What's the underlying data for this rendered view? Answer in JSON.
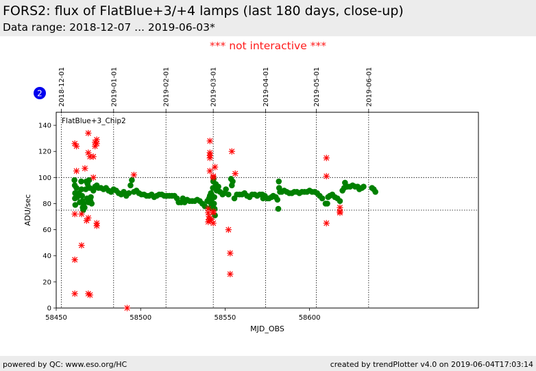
{
  "header": {
    "title": "FORS2: flux of FlatBlue+3/+4 lamps (last 180 days, close-up)",
    "subtitle": "Data range: 2018-12-07 ... 2019-06-03*"
  },
  "notice": "*** not interactive ***",
  "badge": {
    "number": "2",
    "color": "#0000ee"
  },
  "footer": {
    "left": "powered by QC: www.eso.org/HC",
    "right": "created by trendPlotter v4.0 on 2019-06-04T17:03:14"
  },
  "chart_data": {
    "type": "scatter",
    "panel_label": "FlatBlue+3_Chip2",
    "xlabel": "MJD_OBS",
    "ylabel": "ADU/sec",
    "xlim": [
      58450,
      58700
    ],
    "ylim": [
      0,
      150
    ],
    "x_ticks": [
      58450,
      58500,
      58550,
      58600
    ],
    "y_ticks": [
      0,
      20,
      40,
      60,
      80,
      100,
      120,
      140
    ],
    "top_date_axis": [
      {
        "label": "2018-12-01",
        "mjd": 58453
      },
      {
        "label": "2019-01-01",
        "mjd": 58484
      },
      {
        "label": "2019-02-01",
        "mjd": 58515
      },
      {
        "label": "2019-03-01",
        "mjd": 58543
      },
      {
        "label": "2019-04-01",
        "mjd": 58574
      },
      {
        "label": "2019-05-01",
        "mjd": 58604
      },
      {
        "label": "2019-06-01",
        "mjd": 58635
      }
    ],
    "reference_lines": [
      75,
      100
    ],
    "series": [
      {
        "marker": "circle",
        "color": "#008000",
        "points": [
          [
            58460.8,
            98
          ],
          [
            58461,
            94
          ],
          [
            58461.2,
            88
          ],
          [
            58461.1,
            84
          ],
          [
            58461.3,
            79
          ],
          [
            58462,
            92
          ],
          [
            58462.5,
            85
          ],
          [
            58463.5,
            88
          ],
          [
            58464,
            81
          ],
          [
            58464.8,
            97
          ],
          [
            58465,
            91
          ],
          [
            58465.3,
            86
          ],
          [
            58465.6,
            82
          ],
          [
            58465.7,
            77
          ],
          [
            58466,
            75
          ],
          [
            58466.3,
            80
          ],
          [
            58466.8,
            77
          ],
          [
            58467.5,
            91
          ],
          [
            58467.8,
            97
          ],
          [
            58468.3,
            84
          ],
          [
            58468.6,
            95
          ],
          [
            58469,
            81
          ],
          [
            58469.5,
            98
          ],
          [
            58469.8,
            92
          ],
          [
            58470.5,
            85
          ],
          [
            58470.3,
            82
          ],
          [
            58471,
            80
          ],
          [
            58472,
            90
          ],
          [
            58473,
            93
          ],
          [
            58474,
            94
          ],
          [
            58475,
            92
          ],
          [
            58476.5,
            92
          ],
          [
            58478,
            91
          ],
          [
            58479.5,
            92
          ],
          [
            58481,
            90
          ],
          [
            58482.5,
            89
          ],
          [
            58484,
            91
          ],
          [
            58485.5,
            90
          ],
          [
            58487,
            88
          ],
          [
            58488.5,
            87
          ],
          [
            58490,
            89
          ],
          [
            58491.5,
            86
          ],
          [
            58493,
            88
          ],
          [
            58494,
            94
          ],
          [
            58494.8,
            98
          ],
          [
            58496,
            89
          ],
          [
            58497.5,
            90
          ],
          [
            58499,
            88
          ],
          [
            58500.5,
            87
          ],
          [
            58502,
            87
          ],
          [
            58503.5,
            86
          ],
          [
            58505,
            86
          ],
          [
            58506.5,
            87
          ],
          [
            58508,
            85
          ],
          [
            58509.5,
            86
          ],
          [
            58511,
            87
          ],
          [
            58512.5,
            87
          ],
          [
            58514,
            86
          ],
          [
            58515.5,
            86
          ],
          [
            58517,
            86
          ],
          [
            58518.5,
            86
          ],
          [
            58520,
            86
          ],
          [
            58521.5,
            84
          ],
          [
            58522.5,
            81
          ],
          [
            58524,
            81
          ],
          [
            58525,
            84
          ],
          [
            58526,
            81
          ],
          [
            58527.5,
            83
          ],
          [
            58529,
            82
          ],
          [
            58530.5,
            82
          ],
          [
            58532,
            82
          ],
          [
            58533.5,
            83
          ],
          [
            58535,
            82
          ],
          [
            58536.5,
            80
          ],
          [
            58538,
            78
          ],
          [
            58539.5,
            82
          ],
          [
            58540.5,
            84
          ],
          [
            58541,
            86
          ],
          [
            58541.2,
            81
          ],
          [
            58541.4,
            77
          ],
          [
            58541.6,
            88
          ],
          [
            58542,
            87
          ],
          [
            58542.3,
            84
          ],
          [
            58542.5,
            79
          ],
          [
            58542.8,
            92
          ],
          [
            58543,
            97
          ],
          [
            58543.2,
            99
          ],
          [
            58543.4,
            80
          ],
          [
            58543.6,
            85
          ],
          [
            58543.8,
            76
          ],
          [
            58544,
            71
          ],
          [
            58544.5,
            95
          ],
          [
            58545,
            90
          ],
          [
            58546,
            93
          ],
          [
            58547,
            89
          ],
          [
            58548.5,
            87
          ],
          [
            58549.5,
            88
          ],
          [
            58550.5,
            91
          ],
          [
            58552,
            87
          ],
          [
            58553.5,
            99
          ],
          [
            58554,
            94
          ],
          [
            58554.5,
            97
          ],
          [
            58555.5,
            84
          ],
          [
            58557,
            87
          ],
          [
            58558.5,
            87
          ],
          [
            58560,
            87
          ],
          [
            58561.5,
            88
          ],
          [
            58563,
            86
          ],
          [
            58564.5,
            85
          ],
          [
            58566,
            87
          ],
          [
            58567.5,
            87
          ],
          [
            58569,
            86
          ],
          [
            58570.5,
            87
          ],
          [
            58572,
            87
          ],
          [
            58572.5,
            84
          ],
          [
            58573.5,
            86
          ],
          [
            58575,
            84
          ],
          [
            58576,
            84
          ],
          [
            58577.5,
            85
          ],
          [
            58578.5,
            86
          ],
          [
            58580,
            85
          ],
          [
            58581,
            83
          ],
          [
            58581.5,
            76
          ],
          [
            58581.8,
            97
          ],
          [
            58582,
            92
          ],
          [
            58582.5,
            89
          ],
          [
            58583.5,
            89
          ],
          [
            58585,
            90
          ],
          [
            58586.5,
            89
          ],
          [
            58588,
            88
          ],
          [
            58589.5,
            88
          ],
          [
            58591,
            89
          ],
          [
            58592.5,
            89
          ],
          [
            58594,
            88
          ],
          [
            58595.5,
            89
          ],
          [
            58597,
            89
          ],
          [
            58598.5,
            89
          ],
          [
            58600,
            90
          ],
          [
            58601.5,
            89
          ],
          [
            58603,
            89
          ],
          [
            58604.5,
            88
          ],
          [
            58606,
            86
          ],
          [
            58607.5,
            84
          ],
          [
            58609.5,
            80
          ],
          [
            58610.5,
            80
          ],
          [
            58611,
            85
          ],
          [
            58612,
            86
          ],
          [
            58613.5,
            87
          ],
          [
            58615,
            85
          ],
          [
            58616.5,
            84
          ],
          [
            58618,
            82
          ],
          [
            58619.5,
            90
          ],
          [
            58620.5,
            92
          ],
          [
            58621,
            96
          ],
          [
            58622.5,
            93
          ],
          [
            58624,
            93
          ],
          [
            58625.5,
            94
          ],
          [
            58627,
            93
          ],
          [
            58628.5,
            93
          ],
          [
            58629.5,
            91
          ],
          [
            58631,
            92
          ],
          [
            58632,
            93
          ],
          [
            58637,
            92
          ],
          [
            58638,
            91
          ],
          [
            58639,
            89
          ]
        ]
      },
      {
        "marker": "x",
        "color": "#ff0000",
        "points": [
          [
            58461,
            126
          ],
          [
            58462,
            124
          ],
          [
            58462,
            105
          ],
          [
            58461,
            72
          ],
          [
            58461,
            37
          ],
          [
            58461,
            11
          ],
          [
            58465,
            72
          ],
          [
            58465,
            48
          ],
          [
            58467,
            107
          ],
          [
            58468,
            67
          ],
          [
            58469,
            134
          ],
          [
            58469,
            119
          ],
          [
            58470,
            116
          ],
          [
            58472,
            116
          ],
          [
            58469,
            69
          ],
          [
            58469,
            11
          ],
          [
            58470,
            10
          ],
          [
            58472,
            100
          ],
          [
            58473,
            124
          ],
          [
            58473,
            127
          ],
          [
            58474,
            129
          ],
          [
            58474,
            126
          ],
          [
            58474,
            65
          ],
          [
            58474,
            63
          ],
          [
            58492,
            0
          ],
          [
            58496,
            102
          ],
          [
            58541,
            128
          ],
          [
            58541,
            119
          ],
          [
            58541,
            117
          ],
          [
            58541,
            115
          ],
          [
            58541,
            105
          ],
          [
            58540,
            76
          ],
          [
            58540,
            73
          ],
          [
            58540.5,
            70
          ],
          [
            58540.5,
            68
          ],
          [
            58540,
            66
          ],
          [
            58541,
            67
          ],
          [
            58542,
            68
          ],
          [
            58543,
            74
          ],
          [
            58543,
            73
          ],
          [
            58543,
            65
          ],
          [
            58544,
            108
          ],
          [
            58543,
            101
          ],
          [
            58543,
            100
          ],
          [
            58552,
            60
          ],
          [
            58553,
            42
          ],
          [
            58553,
            26
          ],
          [
            58554,
            120
          ],
          [
            58556,
            103
          ],
          [
            58610,
            115
          ],
          [
            58610,
            101
          ],
          [
            58610,
            65
          ],
          [
            58618,
            77
          ],
          [
            58618,
            74
          ],
          [
            58618,
            73
          ]
        ]
      }
    ]
  }
}
